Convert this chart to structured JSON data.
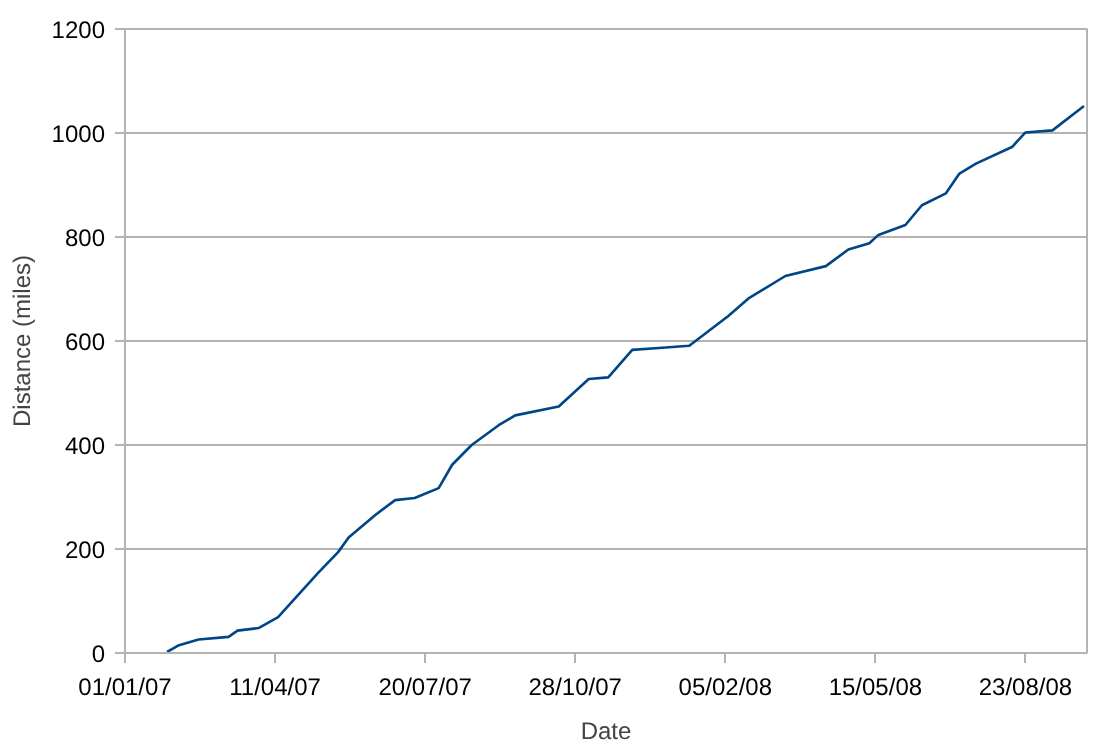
{
  "chart_data": {
    "type": "line",
    "xlabel": "Date",
    "ylabel": "Distance (miles)",
    "x": [
      "2007-01-29",
      "2007-02-06",
      "2007-02-19",
      "2007-03-11",
      "2007-03-17",
      "2007-03-31",
      "2007-04-13",
      "2007-05-10",
      "2007-05-23",
      "2007-05-30",
      "2007-06-17",
      "2007-06-30",
      "2007-07-13",
      "2007-07-29",
      "2007-08-07",
      "2007-08-20",
      "2007-09-07",
      "2007-09-18",
      "2007-10-17",
      "2007-11-06",
      "2007-11-19",
      "2007-12-05",
      "2007-12-25",
      "2008-01-12",
      "2008-02-07",
      "2008-02-21",
      "2008-03-16",
      "2008-04-12",
      "2008-04-27",
      "2008-05-11",
      "2008-05-17",
      "2008-06-04",
      "2008-06-15",
      "2008-07-01",
      "2008-07-10",
      "2008-07-21",
      "2008-08-14",
      "2008-08-23",
      "2008-09-10",
      "2008-10-01"
    ],
    "series": [
      {
        "color": "#004586",
        "values": [
          2,
          15,
          26,
          31,
          43,
          48,
          69,
          155,
          194,
          222,
          266,
          294,
          298,
          317,
          362,
          400,
          438,
          457,
          474,
          527,
          530,
          583,
          587,
          591,
          648,
          683,
          725,
          744,
          776,
          788,
          804,
          823,
          861,
          884,
          922,
          941,
          973,
          1001,
          1005,
          1052
        ]
      }
    ],
    "xlim": [
      "2007-01-01",
      "2008-10-03"
    ],
    "xticks": [
      {
        "value": "2007-01-01",
        "label": "01/01/07"
      },
      {
        "value": "2007-04-11",
        "label": "11/04/07"
      },
      {
        "value": "2007-07-20",
        "label": "20/07/07"
      },
      {
        "value": "2007-10-28",
        "label": "28/10/07"
      },
      {
        "value": "2008-02-05",
        "label": "05/02/08"
      },
      {
        "value": "2008-05-15",
        "label": "15/05/08"
      },
      {
        "value": "2008-08-23",
        "label": "23/08/08"
      }
    ],
    "ylim": [
      0,
      1200
    ],
    "yticks": [
      0,
      200,
      400,
      600,
      800,
      1000,
      1200
    ],
    "grid": "y",
    "marker": "none",
    "line_style": "solid"
  }
}
